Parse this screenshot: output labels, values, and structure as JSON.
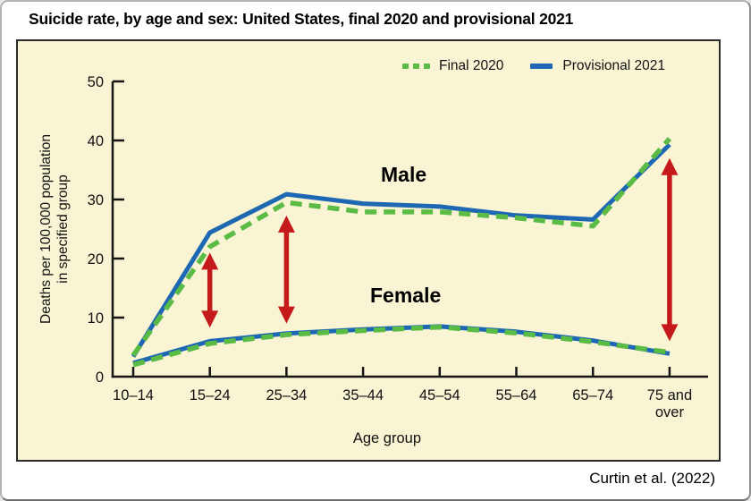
{
  "page": {
    "title": "Suicide rate, by age and sex: United States, final 2020 and provisional 2021",
    "citation": "Curtin et al. (2022)"
  },
  "chart_data": {
    "type": "line",
    "title": "Suicide rate, by age and sex: United States, final 2020 and provisional 2021",
    "xlabel": "Age group",
    "ylabel_lines": [
      "Deaths per 100,000 population",
      "in specified group"
    ],
    "ylim": [
      0,
      50
    ],
    "yticks": [
      0,
      10,
      20,
      30,
      40,
      50
    ],
    "grid": false,
    "legend_position": "top-right",
    "categories": [
      "10–14",
      "15–24",
      "25–34",
      "35–44",
      "45–54",
      "55–64",
      "65–74",
      "75 and over"
    ],
    "legend": [
      {
        "label": "Final 2020",
        "style": "dashed",
        "color_key": "green"
      },
      {
        "label": "Provisional 2021",
        "style": "solid",
        "color_key": "blue"
      }
    ],
    "series": [
      {
        "name": "Male — Provisional 2021",
        "group": "Male",
        "legend": "Provisional 2021",
        "style": "solid",
        "color_key": "blue",
        "values": [
          3.4,
          24.4,
          30.9,
          29.3,
          28.8,
          27.3,
          26.6,
          39.3
        ]
      },
      {
        "name": "Female — Provisional 2021",
        "group": "Female",
        "legend": "Provisional 2021",
        "style": "solid",
        "color_key": "blue",
        "values": [
          2.3,
          6.0,
          7.3,
          8.0,
          8.5,
          7.6,
          6.1,
          3.9
        ]
      },
      {
        "name": "Male — Final 2020",
        "group": "Male",
        "legend": "Final 2020",
        "style": "dashed",
        "color_key": "green",
        "values": [
          3.6,
          22.0,
          29.5,
          27.9,
          27.9,
          26.9,
          25.5,
          40.3
        ]
      },
      {
        "name": "Female — Final 2020",
        "group": "Female",
        "legend": "Final 2020",
        "style": "dashed",
        "color_key": "green",
        "values": [
          2.0,
          5.6,
          7.1,
          7.8,
          8.4,
          7.4,
          5.9,
          4.1
        ]
      }
    ],
    "annotations": {
      "male_label": "Male",
      "female_label": "Female",
      "arrows": [
        {
          "at": "15–24",
          "y_bottom": 8.3,
          "y_top": 21.0
        },
        {
          "at": "25–34",
          "y_bottom": 9.0,
          "y_top": 27.3
        },
        {
          "at": "75 and over",
          "y_bottom": 6.0,
          "y_top": 37.0
        }
      ]
    },
    "colors": {
      "green": "#5ABB45",
      "blue": "#1E68B3",
      "red": "#C51A1B",
      "panel_bg": "#F9F4D3",
      "axis": "#161616"
    }
  }
}
